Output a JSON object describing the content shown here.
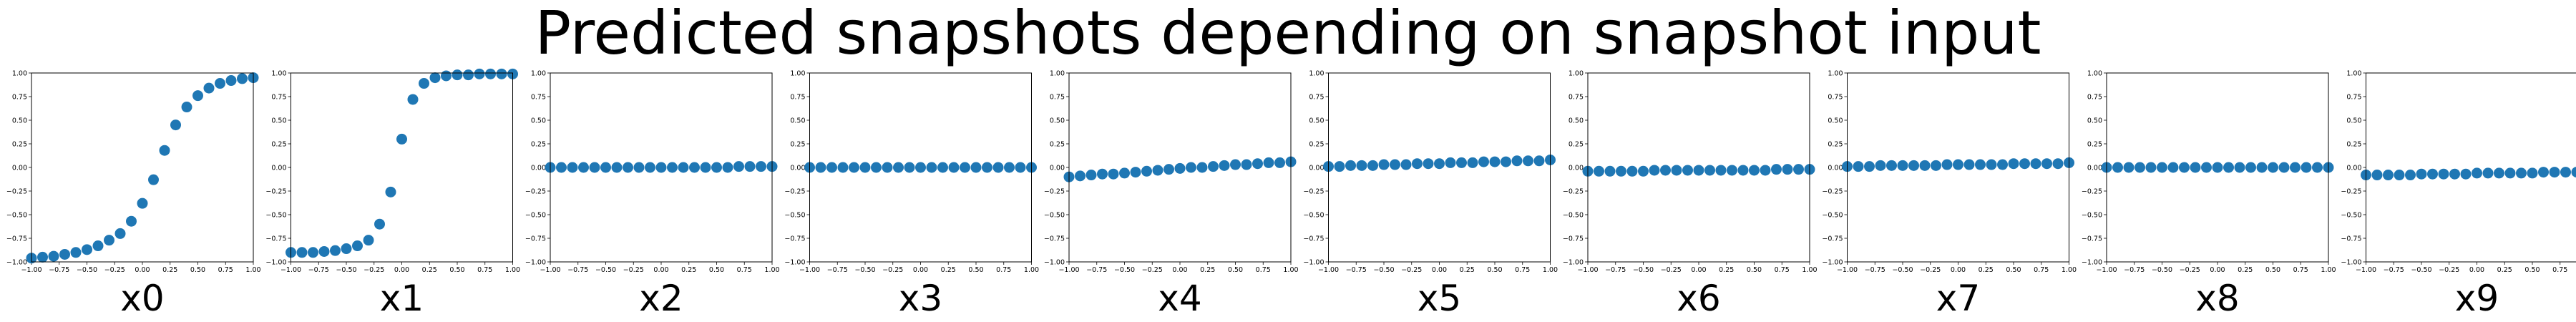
{
  "figure": {
    "title": "Predicted snapshots depending on snapshot input"
  },
  "chart_data": [
    {
      "type": "scatter",
      "xlabel": "x0",
      "xlim": [
        -1,
        1
      ],
      "ylim": [
        -1,
        1
      ],
      "color": "#1f77b4",
      "xticks": [
        "−1.00",
        "−0.75",
        "−0.50",
        "−0.25",
        "0.00",
        "0.25",
        "0.50",
        "0.75",
        "1.00"
      ],
      "yticks": [
        "−1.00",
        "−0.75",
        "−0.50",
        "−0.25",
        "0.00",
        "0.25",
        "0.50",
        "0.75",
        "1.00"
      ],
      "x": [
        -1.0,
        -0.9,
        -0.8,
        -0.7,
        -0.6,
        -0.5,
        -0.4,
        -0.3,
        -0.2,
        -0.1,
        0.0,
        0.1,
        0.2,
        0.3,
        0.4,
        0.5,
        0.6,
        0.7,
        0.8,
        0.9,
        1.0
      ],
      "y": [
        -0.96,
        -0.95,
        -0.94,
        -0.92,
        -0.9,
        -0.87,
        -0.83,
        -0.77,
        -0.7,
        -0.57,
        -0.38,
        -0.13,
        0.18,
        0.45,
        0.64,
        0.76,
        0.84,
        0.89,
        0.92,
        0.94,
        0.95
      ]
    },
    {
      "type": "scatter",
      "xlabel": "x1",
      "xlim": [
        -1,
        1
      ],
      "ylim": [
        -1,
        1
      ],
      "color": "#1f77b4",
      "xticks": [
        "−1.00",
        "−0.75",
        "−0.50",
        "−0.25",
        "0.00",
        "0.25",
        "0.50",
        "0.75",
        "1.00"
      ],
      "yticks": [
        "−1.00",
        "−0.75",
        "−0.50",
        "−0.25",
        "0.00",
        "0.25",
        "0.50",
        "0.75",
        "1.00"
      ],
      "x": [
        -1.0,
        -0.9,
        -0.8,
        -0.7,
        -0.6,
        -0.5,
        -0.4,
        -0.3,
        -0.2,
        -0.1,
        0.0,
        0.1,
        0.2,
        0.3,
        0.4,
        0.5,
        0.6,
        0.7,
        0.8,
        0.9,
        1.0
      ],
      "y": [
        -0.9,
        -0.9,
        -0.9,
        -0.89,
        -0.88,
        -0.86,
        -0.83,
        -0.77,
        -0.6,
        -0.26,
        0.3,
        0.72,
        0.89,
        0.95,
        0.97,
        0.98,
        0.98,
        0.99,
        0.99,
        0.99,
        0.99
      ]
    },
    {
      "type": "scatter",
      "xlabel": "x2",
      "xlim": [
        -1,
        1
      ],
      "ylim": [
        -1,
        1
      ],
      "color": "#1f77b4",
      "xticks": [
        "−1.00",
        "−0.75",
        "−0.50",
        "−0.25",
        "0.00",
        "0.25",
        "0.50",
        "0.75",
        "1.00"
      ],
      "yticks": [
        "−1.00",
        "−0.75",
        "−0.50",
        "−0.25",
        "0.00",
        "0.25",
        "0.50",
        "0.75",
        "1.00"
      ],
      "x": [
        -1.0,
        -0.9,
        -0.8,
        -0.7,
        -0.6,
        -0.5,
        -0.4,
        -0.3,
        -0.2,
        -0.1,
        0.0,
        0.1,
        0.2,
        0.3,
        0.4,
        0.5,
        0.6,
        0.7,
        0.8,
        0.9,
        1.0
      ],
      "y": [
        0.0,
        0.0,
        0.0,
        0.0,
        0.0,
        0.0,
        0.0,
        0.0,
        0.0,
        0.0,
        0.0,
        0.0,
        0.0,
        0.0,
        0.0,
        0.0,
        0.0,
        0.01,
        0.01,
        0.01,
        0.01
      ]
    },
    {
      "type": "scatter",
      "xlabel": "x3",
      "xlim": [
        -1,
        1
      ],
      "ylim": [
        -1,
        1
      ],
      "color": "#1f77b4",
      "xticks": [
        "−1.00",
        "−0.75",
        "−0.50",
        "−0.25",
        "0.00",
        "0.25",
        "0.50",
        "0.75",
        "1.00"
      ],
      "yticks": [
        "−1.00",
        "−0.75",
        "−0.50",
        "−0.25",
        "0.00",
        "0.25",
        "0.50",
        "0.75",
        "1.00"
      ],
      "x": [
        -1.0,
        -0.9,
        -0.8,
        -0.7,
        -0.6,
        -0.5,
        -0.4,
        -0.3,
        -0.2,
        -0.1,
        0.0,
        0.1,
        0.2,
        0.3,
        0.4,
        0.5,
        0.6,
        0.7,
        0.8,
        0.9,
        1.0
      ],
      "y": [
        0.0,
        0.0,
        0.0,
        0.0,
        0.0,
        0.0,
        0.0,
        0.0,
        0.0,
        0.0,
        0.0,
        0.0,
        0.0,
        0.0,
        0.0,
        0.0,
        0.0,
        0.0,
        0.0,
        0.0,
        0.0
      ]
    },
    {
      "type": "scatter",
      "xlabel": "x4",
      "xlim": [
        -1,
        1
      ],
      "ylim": [
        -1,
        1
      ],
      "color": "#1f77b4",
      "xticks": [
        "−1.00",
        "−0.75",
        "−0.50",
        "−0.25",
        "0.00",
        "0.25",
        "0.50",
        "0.75",
        "1.00"
      ],
      "yticks": [
        "−1.00",
        "−0.75",
        "−0.50",
        "−0.25",
        "0.00",
        "0.25",
        "0.50",
        "0.75",
        "1.00"
      ],
      "x": [
        -1.0,
        -0.9,
        -0.8,
        -0.7,
        -0.6,
        -0.5,
        -0.4,
        -0.3,
        -0.2,
        -0.1,
        0.0,
        0.1,
        0.2,
        0.3,
        0.4,
        0.5,
        0.6,
        0.7,
        0.8,
        0.9,
        1.0
      ],
      "y": [
        -0.1,
        -0.09,
        -0.08,
        -0.07,
        -0.07,
        -0.06,
        -0.05,
        -0.04,
        -0.03,
        -0.02,
        -0.01,
        0.0,
        0.0,
        0.01,
        0.02,
        0.03,
        0.03,
        0.04,
        0.05,
        0.05,
        0.06
      ]
    },
    {
      "type": "scatter",
      "xlabel": "x5",
      "xlim": [
        -1,
        1
      ],
      "ylim": [
        -1,
        1
      ],
      "color": "#1f77b4",
      "xticks": [
        "−1.00",
        "−0.75",
        "−0.50",
        "−0.25",
        "0.00",
        "0.25",
        "0.50",
        "0.75",
        "1.00"
      ],
      "yticks": [
        "−1.00",
        "−0.75",
        "−0.50",
        "−0.25",
        "0.00",
        "0.25",
        "0.50",
        "0.75",
        "1.00"
      ],
      "x": [
        -1.0,
        -0.9,
        -0.8,
        -0.7,
        -0.6,
        -0.5,
        -0.4,
        -0.3,
        -0.2,
        -0.1,
        0.0,
        0.1,
        0.2,
        0.3,
        0.4,
        0.5,
        0.6,
        0.7,
        0.8,
        0.9,
        1.0
      ],
      "y": [
        0.01,
        0.01,
        0.02,
        0.02,
        0.02,
        0.03,
        0.03,
        0.03,
        0.04,
        0.04,
        0.04,
        0.05,
        0.05,
        0.05,
        0.06,
        0.06,
        0.06,
        0.07,
        0.07,
        0.07,
        0.08
      ]
    },
    {
      "type": "scatter",
      "xlabel": "x6",
      "xlim": [
        -1,
        1
      ],
      "ylim": [
        -1,
        1
      ],
      "color": "#1f77b4",
      "xticks": [
        "−1.00",
        "−0.75",
        "−0.50",
        "−0.25",
        "0.00",
        "0.25",
        "0.50",
        "0.75",
        "1.00"
      ],
      "yticks": [
        "−1.00",
        "−0.75",
        "−0.50",
        "−0.25",
        "0.00",
        "0.25",
        "0.50",
        "0.75",
        "1.00"
      ],
      "x": [
        -1.0,
        -0.9,
        -0.8,
        -0.7,
        -0.6,
        -0.5,
        -0.4,
        -0.3,
        -0.2,
        -0.1,
        0.0,
        0.1,
        0.2,
        0.3,
        0.4,
        0.5,
        0.6,
        0.7,
        0.8,
        0.9,
        1.0
      ],
      "y": [
        -0.04,
        -0.04,
        -0.04,
        -0.04,
        -0.04,
        -0.04,
        -0.03,
        -0.03,
        -0.03,
        -0.03,
        -0.03,
        -0.03,
        -0.03,
        -0.03,
        -0.03,
        -0.03,
        -0.03,
        -0.02,
        -0.02,
        -0.02,
        -0.02
      ]
    },
    {
      "type": "scatter",
      "xlabel": "x7",
      "xlim": [
        -1,
        1
      ],
      "ylim": [
        -1,
        1
      ],
      "color": "#1f77b4",
      "xticks": [
        "−1.00",
        "−0.75",
        "−0.50",
        "−0.25",
        "0.00",
        "0.25",
        "0.50",
        "0.75",
        "1.00"
      ],
      "yticks": [
        "−1.00",
        "−0.75",
        "−0.50",
        "−0.25",
        "0.00",
        "0.25",
        "0.50",
        "0.75",
        "1.00"
      ],
      "x": [
        -1.0,
        -0.9,
        -0.8,
        -0.7,
        -0.6,
        -0.5,
        -0.4,
        -0.3,
        -0.2,
        -0.1,
        0.0,
        0.1,
        0.2,
        0.3,
        0.4,
        0.5,
        0.6,
        0.7,
        0.8,
        0.9,
        1.0
      ],
      "y": [
        0.01,
        0.01,
        0.01,
        0.02,
        0.02,
        0.02,
        0.02,
        0.02,
        0.02,
        0.03,
        0.03,
        0.03,
        0.03,
        0.03,
        0.03,
        0.04,
        0.04,
        0.04,
        0.04,
        0.04,
        0.05
      ]
    },
    {
      "type": "scatter",
      "xlabel": "x8",
      "xlim": [
        -1,
        1
      ],
      "ylim": [
        -1,
        1
      ],
      "color": "#1f77b4",
      "xticks": [
        "−1.00",
        "−0.75",
        "−0.50",
        "−0.25",
        "0.00",
        "0.25",
        "0.50",
        "0.75",
        "1.00"
      ],
      "yticks": [
        "−1.00",
        "−0.75",
        "−0.50",
        "−0.25",
        "0.00",
        "0.25",
        "0.50",
        "0.75",
        "1.00"
      ],
      "x": [
        -1.0,
        -0.9,
        -0.8,
        -0.7,
        -0.6,
        -0.5,
        -0.4,
        -0.3,
        -0.2,
        -0.1,
        0.0,
        0.1,
        0.2,
        0.3,
        0.4,
        0.5,
        0.6,
        0.7,
        0.8,
        0.9,
        1.0
      ],
      "y": [
        0.0,
        0.0,
        0.0,
        0.0,
        0.0,
        0.0,
        0.0,
        0.0,
        0.0,
        0.0,
        0.0,
        0.0,
        0.0,
        0.0,
        0.0,
        0.0,
        0.0,
        0.0,
        0.0,
        0.0,
        0.0
      ]
    },
    {
      "type": "scatter",
      "xlabel": "x9",
      "xlim": [
        -1,
        1
      ],
      "ylim": [
        -1,
        1
      ],
      "color": "#1f77b4",
      "xticks": [
        "−1.00",
        "−0.75",
        "−0.50",
        "−0.25",
        "0.00",
        "0.25",
        "0.50",
        "0.75",
        "1.00"
      ],
      "yticks": [
        "−1.00",
        "−0.75",
        "−0.50",
        "−0.25",
        "0.00",
        "0.25",
        "0.50",
        "0.75",
        "1.00"
      ],
      "x": [
        -1.0,
        -0.9,
        -0.8,
        -0.7,
        -0.6,
        -0.5,
        -0.4,
        -0.3,
        -0.2,
        -0.1,
        0.0,
        0.1,
        0.2,
        0.3,
        0.4,
        0.5,
        0.6,
        0.7,
        0.8,
        0.9,
        1.0
      ],
      "y": [
        -0.08,
        -0.08,
        -0.08,
        -0.08,
        -0.08,
        -0.07,
        -0.07,
        -0.07,
        -0.07,
        -0.07,
        -0.06,
        -0.06,
        -0.06,
        -0.06,
        -0.06,
        -0.06,
        -0.05,
        -0.05,
        -0.05,
        -0.05,
        -0.05
      ]
    }
  ]
}
